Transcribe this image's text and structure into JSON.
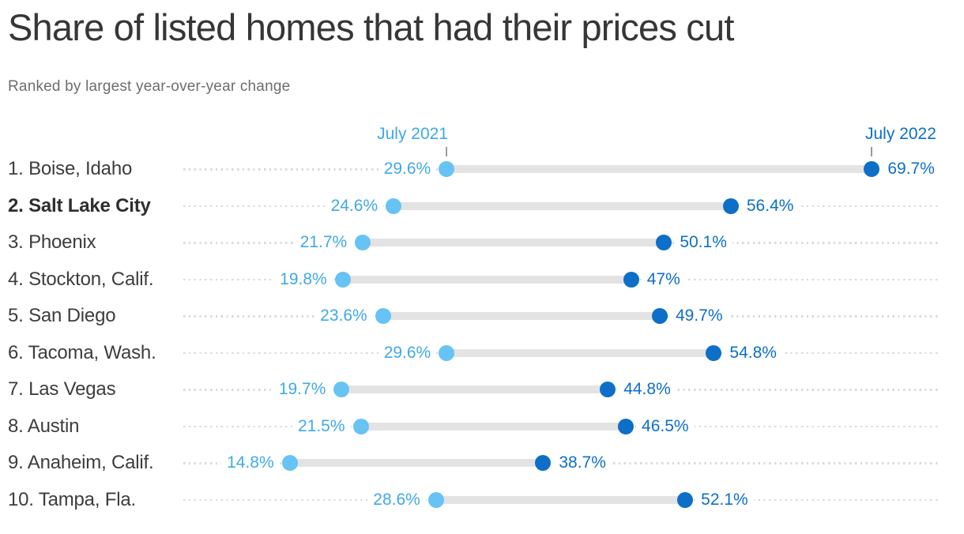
{
  "header": {
    "title": "Share of listed homes that had their prices cut",
    "subtitle": "Ranked by largest year-over-year change"
  },
  "legend": {
    "start_label": "July 2021",
    "end_label": "July 2022"
  },
  "colors": {
    "light_blue_dot": "#67c3f3",
    "light_blue_text": "#3fa9e8",
    "dark_blue": "#0d6fc7",
    "bar_gray": "#e3e3e3",
    "dotted_gray": "#d9d9d9",
    "tick_gray": "#9b9b9b",
    "title_text": "#363636",
    "subtitle_text": "#6e6e6e",
    "city_text": "#3d3d3d"
  },
  "chart_data": {
    "type": "dumbbell",
    "title": "Share of listed homes that had their prices cut",
    "subtitle": "Ranked by largest year-over-year change",
    "unit": "percent",
    "legend_position": "top",
    "grid": "dotted row leader lines",
    "series": [
      {
        "name": "July 2021",
        "color": "#67c3f3"
      },
      {
        "name": "July 2022",
        "color": "#0d6fc7"
      }
    ],
    "rows": [
      {
        "label": "1. Boise, Idaho",
        "start": 29.6,
        "end": 69.7,
        "start_text": "29.6%",
        "end_text": "69.7%",
        "bold": false
      },
      {
        "label": "2. Salt Lake City",
        "start": 24.6,
        "end": 56.4,
        "start_text": "24.6%",
        "end_text": "56.4%",
        "bold": true
      },
      {
        "label": "3. Phoenix",
        "start": 21.7,
        "end": 50.1,
        "start_text": "21.7%",
        "end_text": "50.1%",
        "bold": false
      },
      {
        "label": "4. Stockton, Calif.",
        "start": 19.8,
        "end": 47,
        "start_text": "19.8%",
        "end_text": "47%",
        "bold": false
      },
      {
        "label": "5. San Diego",
        "start": 23.6,
        "end": 49.7,
        "start_text": "23.6%",
        "end_text": "49.7%",
        "bold": false
      },
      {
        "label": "6. Tacoma, Wash.",
        "start": 29.6,
        "end": 54.8,
        "start_text": "29.6%",
        "end_text": "54.8%",
        "bold": false
      },
      {
        "label": "7. Las Vegas",
        "start": 19.7,
        "end": 44.8,
        "start_text": "19.7%",
        "end_text": "44.8%",
        "bold": false
      },
      {
        "label": "8. Austin",
        "start": 21.5,
        "end": 46.5,
        "start_text": "21.5%",
        "end_text": "46.5%",
        "bold": false
      },
      {
        "label": "9. Anaheim, Calif.",
        "start": 14.8,
        "end": 38.7,
        "start_text": "14.8%",
        "end_text": "38.7%",
        "bold": false
      },
      {
        "label": "10. Tampa, Fla.",
        "start": 28.6,
        "end": 52.1,
        "start_text": "28.6%",
        "end_text": "52.1%",
        "bold": false
      }
    ]
  }
}
